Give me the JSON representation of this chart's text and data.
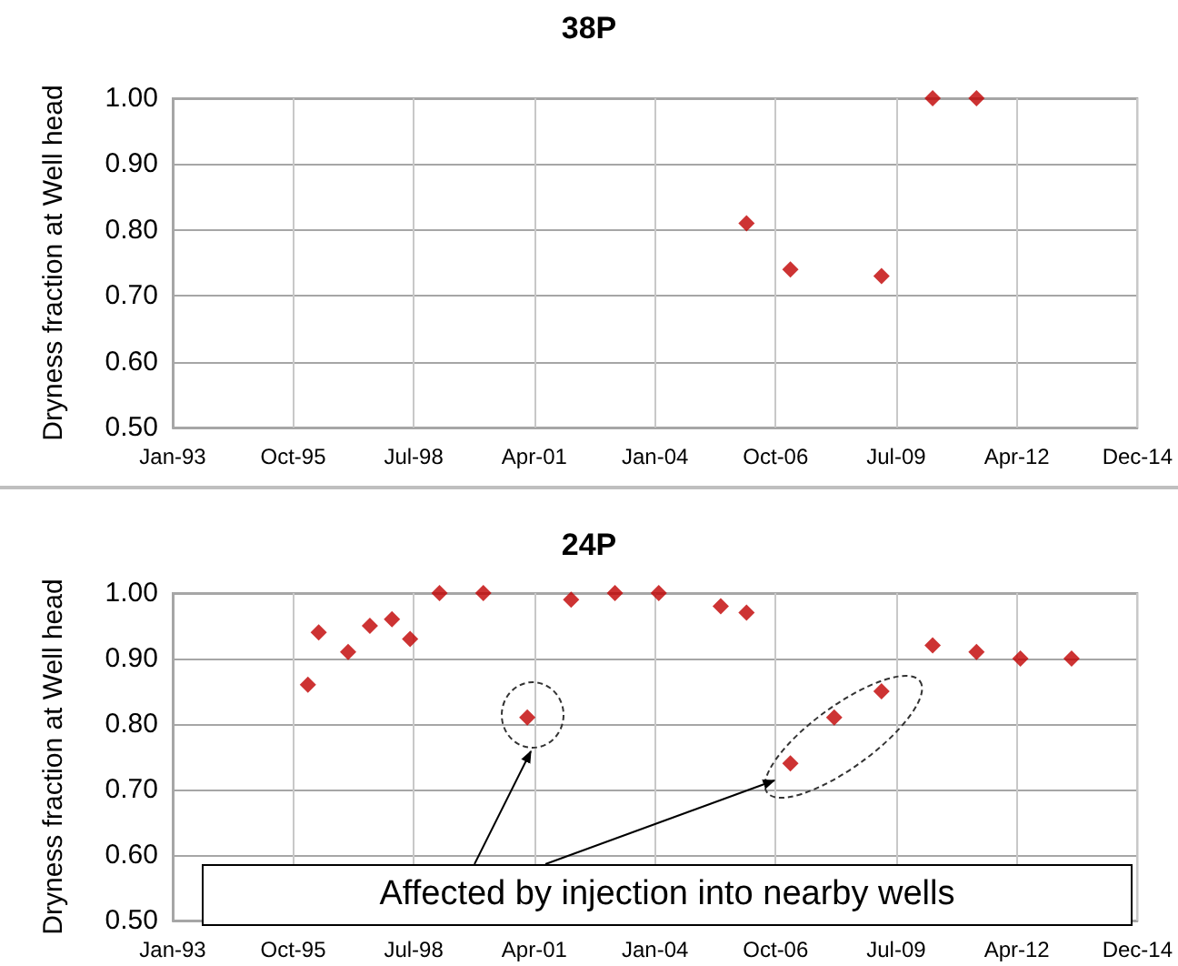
{
  "chart_data": [
    {
      "type": "scatter",
      "title": "38P",
      "ylabel": "Dryness fraction at Well head",
      "marker": "diamond",
      "grid": true,
      "xlim": [
        "1993-01-01",
        "2014-12-31"
      ],
      "xticks": [
        {
          "value": "1993-01-01",
          "label": "Jan-93"
        },
        {
          "value": "1995-10-01",
          "label": "Oct-95"
        },
        {
          "value": "1998-07-01",
          "label": "Jul-98"
        },
        {
          "value": "2001-04-01",
          "label": "Apr-01"
        },
        {
          "value": "2004-01-01",
          "label": "Jan-04"
        },
        {
          "value": "2006-10-01",
          "label": "Oct-06"
        },
        {
          "value": "2009-07-01",
          "label": "Jul-09"
        },
        {
          "value": "2012-04-01",
          "label": "Apr-12"
        },
        {
          "value": "2014-12-31",
          "label": "Dec-14"
        }
      ],
      "ylim": [
        0.5,
        1.0
      ],
      "yticks": [
        {
          "value": 0.5,
          "label": "0.50"
        },
        {
          "value": 0.6,
          "label": "0.60"
        },
        {
          "value": 0.7,
          "label": "0.70"
        },
        {
          "value": 0.8,
          "label": "0.80"
        },
        {
          "value": 0.9,
          "label": "0.90"
        },
        {
          "value": 1.0,
          "label": "1.00"
        }
      ],
      "series": [
        {
          "color": "#c00000",
          "x": [
            "2006-02",
            "2007-02",
            "2009-03",
            "2010-05",
            "2011-05"
          ],
          "values": [
            0.81,
            0.74,
            0.73,
            1.0,
            1.0
          ]
        }
      ]
    },
    {
      "type": "scatter",
      "title": "24P",
      "ylabel": "Dryness fraction at Well head",
      "marker": "diamond",
      "grid": true,
      "annotations": [
        "Affected by injection into nearby wells"
      ],
      "xlim": [
        "1993-01-01",
        "2014-12-31"
      ],
      "xticks": [
        {
          "value": "1993-01-01",
          "label": "Jan-93"
        },
        {
          "value": "1995-10-01",
          "label": "Oct-95"
        },
        {
          "value": "1998-07-01",
          "label": "Jul-98"
        },
        {
          "value": "2001-04-01",
          "label": "Apr-01"
        },
        {
          "value": "2004-01-01",
          "label": "Jan-04"
        },
        {
          "value": "2006-10-01",
          "label": "Oct-06"
        },
        {
          "value": "2009-07-01",
          "label": "Jul-09"
        },
        {
          "value": "2012-04-01",
          "label": "Apr-12"
        },
        {
          "value": "2014-12-31",
          "label": "Dec-14"
        }
      ],
      "ylim": [
        0.5,
        1.0
      ],
      "yticks": [
        {
          "value": 0.5,
          "label": "0.50"
        },
        {
          "value": 0.6,
          "label": "0.60"
        },
        {
          "value": 0.7,
          "label": "0.70"
        },
        {
          "value": 0.8,
          "label": "0.80"
        },
        {
          "value": 0.9,
          "label": "0.90"
        },
        {
          "value": 1.0,
          "label": "1.00"
        }
      ],
      "series": [
        {
          "color": "#c00000",
          "x": [
            "1996-02",
            "1996-05",
            "1997-01",
            "1997-07",
            "1998-01",
            "1998-06",
            "1999-02",
            "2000-02",
            "2001-02",
            "2002-02",
            "2003-02",
            "2004-02",
            "2005-07",
            "2006-02",
            "2007-02",
            "2008-02",
            "2009-03",
            "2010-05",
            "2011-05",
            "2012-05",
            "2013-07"
          ],
          "values": [
            0.86,
            0.94,
            0.91,
            0.95,
            0.96,
            0.93,
            1.0,
            1.0,
            0.81,
            0.99,
            1.0,
            1.0,
            0.98,
            0.97,
            0.74,
            0.81,
            0.85,
            0.92,
            0.91,
            0.9,
            0.9
          ]
        }
      ]
    }
  ]
}
